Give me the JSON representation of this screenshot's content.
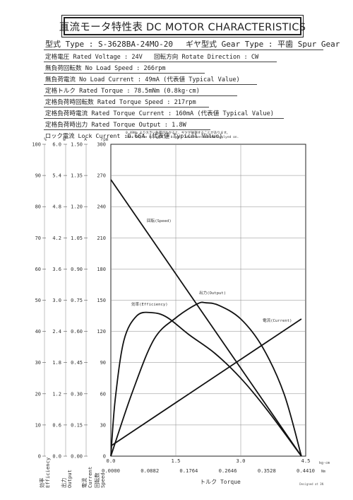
{
  "header": {
    "title": "直流モータ特性表 DC MOTOR CHARACTERISTICS"
  },
  "specs": {
    "model": "型式 Type : S-3628BA-24MO-20",
    "gear": "ギヤ型式 Gear Type : 平歯 Spur Gear",
    "voltage": "定格電圧 Rated Voltage : 24V",
    "direction": "回転方向 Rotate Direction : CW",
    "no_load_speed": "無負荷回転数 No Load Speed : 266rpm",
    "no_load_current": "無負荷電流 No Load Current : 49mA (代表値 Typical Value)",
    "rated_torque": "定格トルク Rated Torque : 78.5mNm (0.8kg·cm)",
    "rated_torque_speed": "定格負荷時回転数 Rated Torque Speed : 217rpm",
    "rated_torque_current": "定格負荷時電流 Rated Torque Current : 160mA (代表値 Typical Value)",
    "rated_torque_output": "定格負荷時出力 Rated Torque Output : 1.8W",
    "lock_current": "ロック電流 Lock Current :0.66A (代表値 Typical Value)"
  },
  "warning": {
    "line1": "0.49Nm より大きい負荷がかかると、ギヤが破損することがあります。",
    "line2": "Gear may be damaged if bigger load then 0.49Nm applyed on."
  },
  "chart_data": {
    "type": "line",
    "title": "直流モータ特性表 DC MOTOR CHARACTERISTICS",
    "xlabel": "トルク Torque",
    "x_units": [
      "kg·cm",
      "Nm"
    ],
    "xlim": [
      0,
      4.5
    ],
    "x_ticks_kgcm": [
      "0.0",
      "1.5",
      "3.0",
      "4.5"
    ],
    "x_ticks_nm": [
      "0.0000",
      "0.0882",
      "0.1764",
      "0.2646",
      "0.3528",
      "0.4410"
    ],
    "grid": true,
    "y_axes": [
      {
        "label": "効率 Efficiency",
        "unit": "%",
        "lim": [
          0,
          100
        ],
        "ticks": [
          "0",
          "10",
          "20",
          "30",
          "40",
          "50",
          "60",
          "70",
          "80",
          "90",
          "100"
        ]
      },
      {
        "label": "出力 Output",
        "unit": "W",
        "lim": [
          0,
          6.0
        ],
        "ticks": [
          "0.0",
          "0.6",
          "1.2",
          "1.8",
          "2.4",
          "3.0",
          "3.6",
          "4.2",
          "4.8",
          "5.4",
          "6.0"
        ]
      },
      {
        "label": "電流 Current",
        "unit": "A",
        "lim": [
          0,
          1.5
        ],
        "ticks": [
          "0.00",
          "0.15",
          "0.30",
          "0.45",
          "0.60",
          "0.75",
          "0.90",
          "1.05",
          "1.20",
          "1.35",
          "1.50"
        ]
      },
      {
        "label": "回転数 Speed",
        "unit": "rpm",
        "lim": [
          0,
          300
        ],
        "ticks": [
          "0",
          "30",
          "60",
          "90",
          "120",
          "150",
          "180",
          "210",
          "240",
          "270",
          "300"
        ]
      }
    ],
    "series": [
      {
        "name": "回転(Speed)",
        "axis": "rpm",
        "x": [
          0,
          4.4
        ],
        "y": [
          266,
          0
        ]
      },
      {
        "name": "電流(Current)",
        "axis": "A",
        "x": [
          0,
          4.4
        ],
        "y": [
          0.049,
          0.66
        ]
      },
      {
        "name": "出力(Output)",
        "axis": "W",
        "x": [
          0,
          0.5,
          1.0,
          1.5,
          2.0,
          2.2,
          2.5,
          3.0,
          3.5,
          4.0,
          4.4
        ],
        "y": [
          0,
          1.24,
          2.25,
          2.66,
          2.93,
          2.95,
          2.9,
          2.64,
          2.1,
          1.2,
          0
        ]
      },
      {
        "name": "効率(Efficiency)",
        "axis": "%",
        "x": [
          0,
          0.1,
          0.3,
          0.6,
          0.95,
          1.3,
          1.8,
          2.4,
          3.0,
          3.6,
          4.4
        ],
        "y": [
          0,
          18,
          37,
          45,
          46,
          44.5,
          39,
          33,
          25,
          15,
          0
        ]
      }
    ]
  },
  "footer": {
    "text": "Designed at 3N"
  }
}
